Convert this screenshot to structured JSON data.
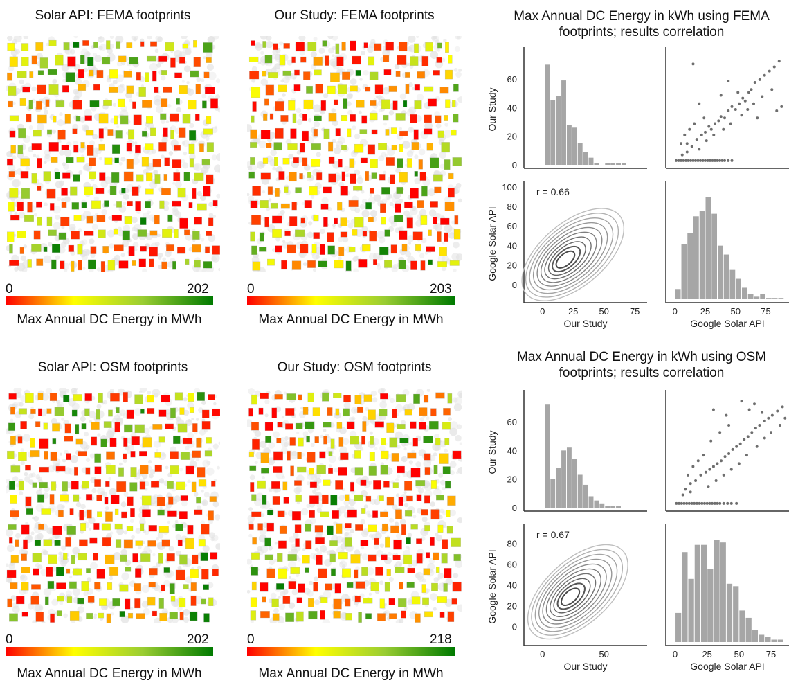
{
  "maps": [
    {
      "title": "Solar API: FEMA footprints",
      "cb_min": "0",
      "cb_max": "202",
      "cb_label": "Max Annual DC Energy in MWh"
    },
    {
      "title": "Our Study: FEMA footprints",
      "cb_min": "0",
      "cb_max": "203",
      "cb_label": "Max Annual DC Energy in MWh"
    },
    {
      "title": "Solar API: OSM footprints",
      "cb_min": "0",
      "cb_max": "202",
      "cb_label": "Max Annual DC Energy in MWh"
    },
    {
      "title": "Our Study: OSM footprints",
      "cb_min": "0",
      "cb_max": "218",
      "cb_label": "Max Annual DC Energy in MWh"
    }
  ],
  "colors": {
    "map_scale": [
      "#ff0000",
      "#ffff00",
      "#9acd32",
      "#007a00"
    ],
    "hist": "#a6a6a6",
    "scatter": "#6e6e6e",
    "kde": "#555555"
  },
  "chart_data": [
    {
      "type": "pairplot",
      "title": "Max Annual DC Energy in kWh using FEMA footprints; results correlation",
      "variables": [
        "Our Study",
        "Google Solar API"
      ],
      "annotation": "r = 0.66",
      "hist_our_study": {
        "bin_edges": [
          0,
          4,
          8,
          12,
          16,
          20,
          24,
          28,
          32,
          36,
          40,
          44,
          48,
          52,
          56,
          60,
          64,
          68,
          72
        ],
        "counts": [
          70,
          45,
          48,
          59,
          28,
          26,
          15,
          9,
          5,
          1,
          0,
          1,
          1,
          1,
          1,
          0,
          0,
          0
        ],
        "ylim": [
          0,
          75
        ],
        "yticks": [
          0,
          20,
          40,
          60
        ],
        "ylabel": "Our Study"
      },
      "hist_google": {
        "bin_edges": [
          0,
          5,
          10,
          15,
          20,
          25,
          30,
          35,
          40,
          45,
          50,
          55,
          60,
          65,
          70,
          75,
          80,
          85,
          90
        ],
        "counts": [
          8,
          43,
          52,
          65,
          69,
          80,
          67,
          42,
          35,
          23,
          16,
          9,
          4,
          2,
          4,
          1,
          1,
          1
        ],
        "xlim": [
          -3,
          93
        ],
        "xticks": [
          0,
          25,
          50,
          75
        ],
        "xlabel": "Google Solar API"
      },
      "scatter": {
        "xlim": [
          -3,
          93
        ],
        "ylim": [
          -3,
          75
        ],
        "yticks": [
          0,
          20,
          40,
          60
        ],
        "points_note": "approximate cloud; many points at y = 0",
        "zero_row_x": [
          1,
          3,
          5,
          7,
          9,
          11,
          13,
          15,
          17,
          19,
          21,
          23,
          25,
          27,
          29,
          31,
          33,
          35,
          37,
          39,
          41,
          44,
          47
        ],
        "cloud": [
          [
            10,
            12
          ],
          [
            14,
            10
          ],
          [
            18,
            15
          ],
          [
            22,
            18
          ],
          [
            25,
            20
          ],
          [
            28,
            24
          ],
          [
            30,
            22
          ],
          [
            33,
            26
          ],
          [
            36,
            28
          ],
          [
            38,
            31
          ],
          [
            41,
            30
          ],
          [
            44,
            35
          ],
          [
            47,
            38
          ],
          [
            50,
            36
          ],
          [
            53,
            40
          ],
          [
            56,
            44
          ],
          [
            58,
            42
          ],
          [
            61,
            48
          ],
          [
            63,
            50
          ],
          [
            66,
            55
          ],
          [
            70,
            57
          ],
          [
            74,
            60
          ],
          [
            78,
            63
          ],
          [
            82,
            66
          ],
          [
            86,
            70
          ],
          [
            20,
            40
          ],
          [
            15,
            68
          ],
          [
            38,
            46
          ],
          [
            44,
            56
          ],
          [
            52,
            48
          ],
          [
            5,
            12
          ],
          [
            8,
            18
          ],
          [
            12,
            22
          ],
          [
            16,
            26
          ],
          [
            24,
            30
          ],
          [
            26,
            14
          ],
          [
            32,
            18
          ],
          [
            40,
            22
          ],
          [
            46,
            26
          ],
          [
            55,
            32
          ],
          [
            60,
            36
          ],
          [
            65,
            40
          ],
          [
            68,
            30
          ],
          [
            72,
            45
          ],
          [
            80,
            50
          ],
          [
            84,
            35
          ],
          [
            88,
            38
          ],
          [
            6,
            4
          ],
          [
            10,
            6
          ],
          [
            20,
            8
          ]
        ]
      },
      "kde": {
        "xlim": [
          -15,
          85
        ],
        "ylim": [
          -15,
          102
        ],
        "xticks": [
          0,
          25,
          50,
          75
        ],
        "yticks": [
          0,
          20,
          40,
          60,
          80,
          100
        ],
        "xlabel": "Our Study",
        "ylabel": "Google Solar API",
        "center": [
          18,
          25
        ],
        "angle_deg": 40,
        "levels": 10
      }
    },
    {
      "type": "pairplot",
      "title": "Max Annual DC Energy in kWh using OSM footprints; results correlation",
      "variables": [
        "Our Study",
        "Google Solar API"
      ],
      "annotation": "r = 0.67",
      "hist_our_study": {
        "bin_edges": [
          0,
          4,
          8,
          12,
          16,
          20,
          24,
          28,
          32,
          36,
          40,
          44,
          48,
          52,
          56,
          60,
          64,
          68,
          72
        ],
        "counts": [
          72,
          20,
          28,
          40,
          42,
          34,
          23,
          16,
          8,
          5,
          3,
          1,
          1,
          1,
          0,
          0,
          0,
          0
        ],
        "ylim": [
          0,
          75
        ],
        "yticks": [
          0,
          20,
          40,
          60
        ],
        "ylabel": "Our Study"
      },
      "hist_google": {
        "bin_edges": [
          0,
          5,
          10,
          15,
          20,
          25,
          30,
          35,
          40,
          45,
          50,
          55,
          60,
          65,
          70,
          75,
          80,
          85
        ],
        "counts": [
          12,
          37,
          26,
          40,
          40,
          30,
          42,
          41,
          24,
          23,
          13,
          10,
          5,
          3,
          2,
          1,
          1
        ],
        "xlim": [
          -3,
          88
        ],
        "xticks": [
          0,
          25,
          50,
          75
        ],
        "xlabel": "Google Solar API"
      },
      "scatter": {
        "xlim": [
          -3,
          88
        ],
        "ylim": [
          -3,
          75
        ],
        "yticks": [
          0,
          20,
          40,
          60
        ],
        "points_note": "approximate cloud; many points at y = 0",
        "zero_row_x": [
          1,
          3,
          5,
          7,
          9,
          11,
          13,
          15,
          17,
          19,
          21,
          23,
          25,
          27,
          29,
          31,
          33,
          35,
          38,
          41,
          44,
          48
        ],
        "cloud": [
          [
            8,
            10
          ],
          [
            12,
            14
          ],
          [
            16,
            16
          ],
          [
            20,
            20
          ],
          [
            24,
            22
          ],
          [
            27,
            24
          ],
          [
            30,
            26
          ],
          [
            33,
            28
          ],
          [
            36,
            30
          ],
          [
            39,
            33
          ],
          [
            42,
            35
          ],
          [
            45,
            38
          ],
          [
            48,
            40
          ],
          [
            51,
            42
          ],
          [
            54,
            45
          ],
          [
            57,
            47
          ],
          [
            60,
            50
          ],
          [
            63,
            53
          ],
          [
            66,
            55
          ],
          [
            70,
            58
          ],
          [
            73,
            60
          ],
          [
            76,
            62
          ],
          [
            80,
            65
          ],
          [
            84,
            68
          ],
          [
            30,
            66
          ],
          [
            52,
            72
          ],
          [
            62,
            70
          ],
          [
            28,
            44
          ],
          [
            35,
            50
          ],
          [
            42,
            55
          ],
          [
            10,
            20
          ],
          [
            14,
            26
          ],
          [
            18,
            30
          ],
          [
            22,
            34
          ],
          [
            26,
            12
          ],
          [
            32,
            16
          ],
          [
            38,
            20
          ],
          [
            44,
            24
          ],
          [
            50,
            28
          ],
          [
            56,
            34
          ],
          [
            64,
            40
          ],
          [
            70,
            46
          ],
          [
            75,
            50
          ],
          [
            82,
            55
          ],
          [
            86,
            60
          ],
          [
            6,
            6
          ],
          [
            12,
            8
          ],
          [
            40,
            62
          ],
          [
            58,
            66
          ],
          [
            68,
            64
          ]
        ]
      },
      "kde": {
        "xlim": [
          -15,
          85
        ],
        "ylim": [
          -15,
          95
        ],
        "xticks": [
          0,
          50
        ],
        "yticks": [
          0,
          20,
          40,
          60,
          80
        ],
        "xlabel": "Our Study",
        "ylabel": "Google Solar API",
        "center": [
          22,
          28
        ],
        "angle_deg": 42,
        "levels": 10
      }
    }
  ]
}
